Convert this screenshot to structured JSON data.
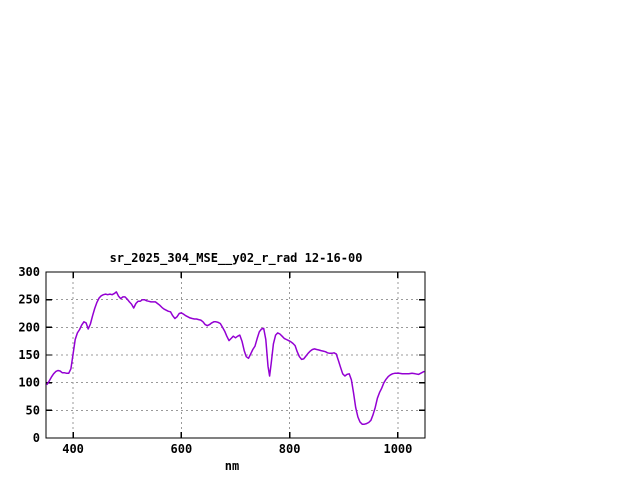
{
  "chart_data": {
    "type": "line",
    "title": "sr_2025_304_MSE__y02_r_rad 12-16-00",
    "xlabel": "nm",
    "ylabel": "",
    "xlim": [
      350,
      1050
    ],
    "ylim": [
      0,
      300
    ],
    "xticks": [
      400,
      600,
      800,
      1000
    ],
    "yticks": [
      0,
      50,
      100,
      150,
      200,
      250,
      300
    ],
    "grid": "dashed",
    "legend_position": "none",
    "colors": {
      "line": "#9400d3",
      "grid": "#9a9a9a",
      "border": "#000000",
      "background": "#ffffff",
      "text": "#000000"
    },
    "series": [
      {
        "name": "sr_2025_304_MSE__y02_r_rad",
        "points": [
          [
            352,
            97
          ],
          [
            356,
            103
          ],
          [
            360,
            110
          ],
          [
            364,
            116
          ],
          [
            368,
            120
          ],
          [
            372,
            122
          ],
          [
            376,
            121
          ],
          [
            380,
            118
          ],
          [
            384,
            118
          ],
          [
            388,
            117
          ],
          [
            392,
            117
          ],
          [
            396,
            125
          ],
          [
            400,
            152
          ],
          [
            404,
            178
          ],
          [
            408,
            190
          ],
          [
            412,
            196
          ],
          [
            416,
            204
          ],
          [
            420,
            210
          ],
          [
            424,
            208
          ],
          [
            428,
            197
          ],
          [
            432,
            206
          ],
          [
            436,
            221
          ],
          [
            440,
            234
          ],
          [
            444,
            245
          ],
          [
            448,
            253
          ],
          [
            452,
            257
          ],
          [
            456,
            259
          ],
          [
            460,
            260
          ],
          [
            464,
            259
          ],
          [
            468,
            260
          ],
          [
            472,
            259
          ],
          [
            476,
            261
          ],
          [
            480,
            264
          ],
          [
            484,
            256
          ],
          [
            488,
            252
          ],
          [
            492,
            255
          ],
          [
            496,
            255
          ],
          [
            500,
            251
          ],
          [
            504,
            246
          ],
          [
            508,
            242
          ],
          [
            512,
            235
          ],
          [
            516,
            243
          ],
          [
            520,
            247
          ],
          [
            524,
            247
          ],
          [
            528,
            250
          ],
          [
            532,
            250
          ],
          [
            536,
            248
          ],
          [
            540,
            247
          ],
          [
            544,
            246
          ],
          [
            548,
            246
          ],
          [
            552,
            246
          ],
          [
            556,
            243
          ],
          [
            560,
            240
          ],
          [
            564,
            236
          ],
          [
            568,
            233
          ],
          [
            572,
            231
          ],
          [
            576,
            229
          ],
          [
            580,
            228
          ],
          [
            584,
            221
          ],
          [
            588,
            216
          ],
          [
            592,
            219
          ],
          [
            596,
            225
          ],
          [
            600,
            226
          ],
          [
            604,
            224
          ],
          [
            608,
            221
          ],
          [
            612,
            219
          ],
          [
            616,
            217
          ],
          [
            620,
            216
          ],
          [
            624,
            215
          ],
          [
            628,
            215
          ],
          [
            632,
            214
          ],
          [
            636,
            213
          ],
          [
            640,
            210
          ],
          [
            644,
            205
          ],
          [
            648,
            203
          ],
          [
            652,
            205
          ],
          [
            656,
            208
          ],
          [
            660,
            210
          ],
          [
            664,
            210
          ],
          [
            668,
            209
          ],
          [
            672,
            207
          ],
          [
            676,
            200
          ],
          [
            680,
            193
          ],
          [
            684,
            184
          ],
          [
            688,
            176
          ],
          [
            692,
            180
          ],
          [
            696,
            184
          ],
          [
            700,
            181
          ],
          [
            704,
            184
          ],
          [
            708,
            186
          ],
          [
            712,
            175
          ],
          [
            716,
            158
          ],
          [
            720,
            147
          ],
          [
            724,
            144
          ],
          [
            728,
            152
          ],
          [
            732,
            160
          ],
          [
            736,
            166
          ],
          [
            740,
            180
          ],
          [
            744,
            192
          ],
          [
            748,
            197
          ],
          [
            752,
            198
          ],
          [
            756,
            178
          ],
          [
            760,
            130
          ],
          [
            763,
            112
          ],
          [
            766,
            135
          ],
          [
            770,
            170
          ],
          [
            774,
            186
          ],
          [
            778,
            190
          ],
          [
            782,
            188
          ],
          [
            786,
            184
          ],
          [
            790,
            180
          ],
          [
            794,
            178
          ],
          [
            798,
            176
          ],
          [
            802,
            174
          ],
          [
            806,
            171
          ],
          [
            810,
            167
          ],
          [
            814,
            156
          ],
          [
            818,
            147
          ],
          [
            822,
            142
          ],
          [
            826,
            143
          ],
          [
            830,
            148
          ],
          [
            834,
            153
          ],
          [
            838,
            157
          ],
          [
            842,
            160
          ],
          [
            846,
            161
          ],
          [
            850,
            160
          ],
          [
            854,
            159
          ],
          [
            858,
            158
          ],
          [
            862,
            157
          ],
          [
            866,
            156
          ],
          [
            870,
            154
          ],
          [
            874,
            153
          ],
          [
            878,
            153
          ],
          [
            882,
            154
          ],
          [
            886,
            152
          ],
          [
            890,
            140
          ],
          [
            894,
            128
          ],
          [
            898,
            116
          ],
          [
            902,
            112
          ],
          [
            906,
            115
          ],
          [
            910,
            116
          ],
          [
            914,
            105
          ],
          [
            918,
            82
          ],
          [
            922,
            55
          ],
          [
            926,
            38
          ],
          [
            930,
            29
          ],
          [
            934,
            25
          ],
          [
            938,
            25
          ],
          [
            942,
            26
          ],
          [
            946,
            28
          ],
          [
            950,
            32
          ],
          [
            954,
            42
          ],
          [
            958,
            55
          ],
          [
            962,
            72
          ],
          [
            966,
            82
          ],
          [
            970,
            90
          ],
          [
            974,
            100
          ],
          [
            978,
            106
          ],
          [
            982,
            111
          ],
          [
            986,
            114
          ],
          [
            990,
            116
          ],
          [
            994,
            117
          ],
          [
            998,
            117
          ],
          [
            1002,
            117
          ],
          [
            1008,
            116
          ],
          [
            1014,
            116
          ],
          [
            1020,
            116
          ],
          [
            1026,
            117
          ],
          [
            1032,
            116
          ],
          [
            1038,
            115
          ],
          [
            1044,
            118
          ],
          [
            1048,
            120
          ]
        ]
      }
    ]
  }
}
